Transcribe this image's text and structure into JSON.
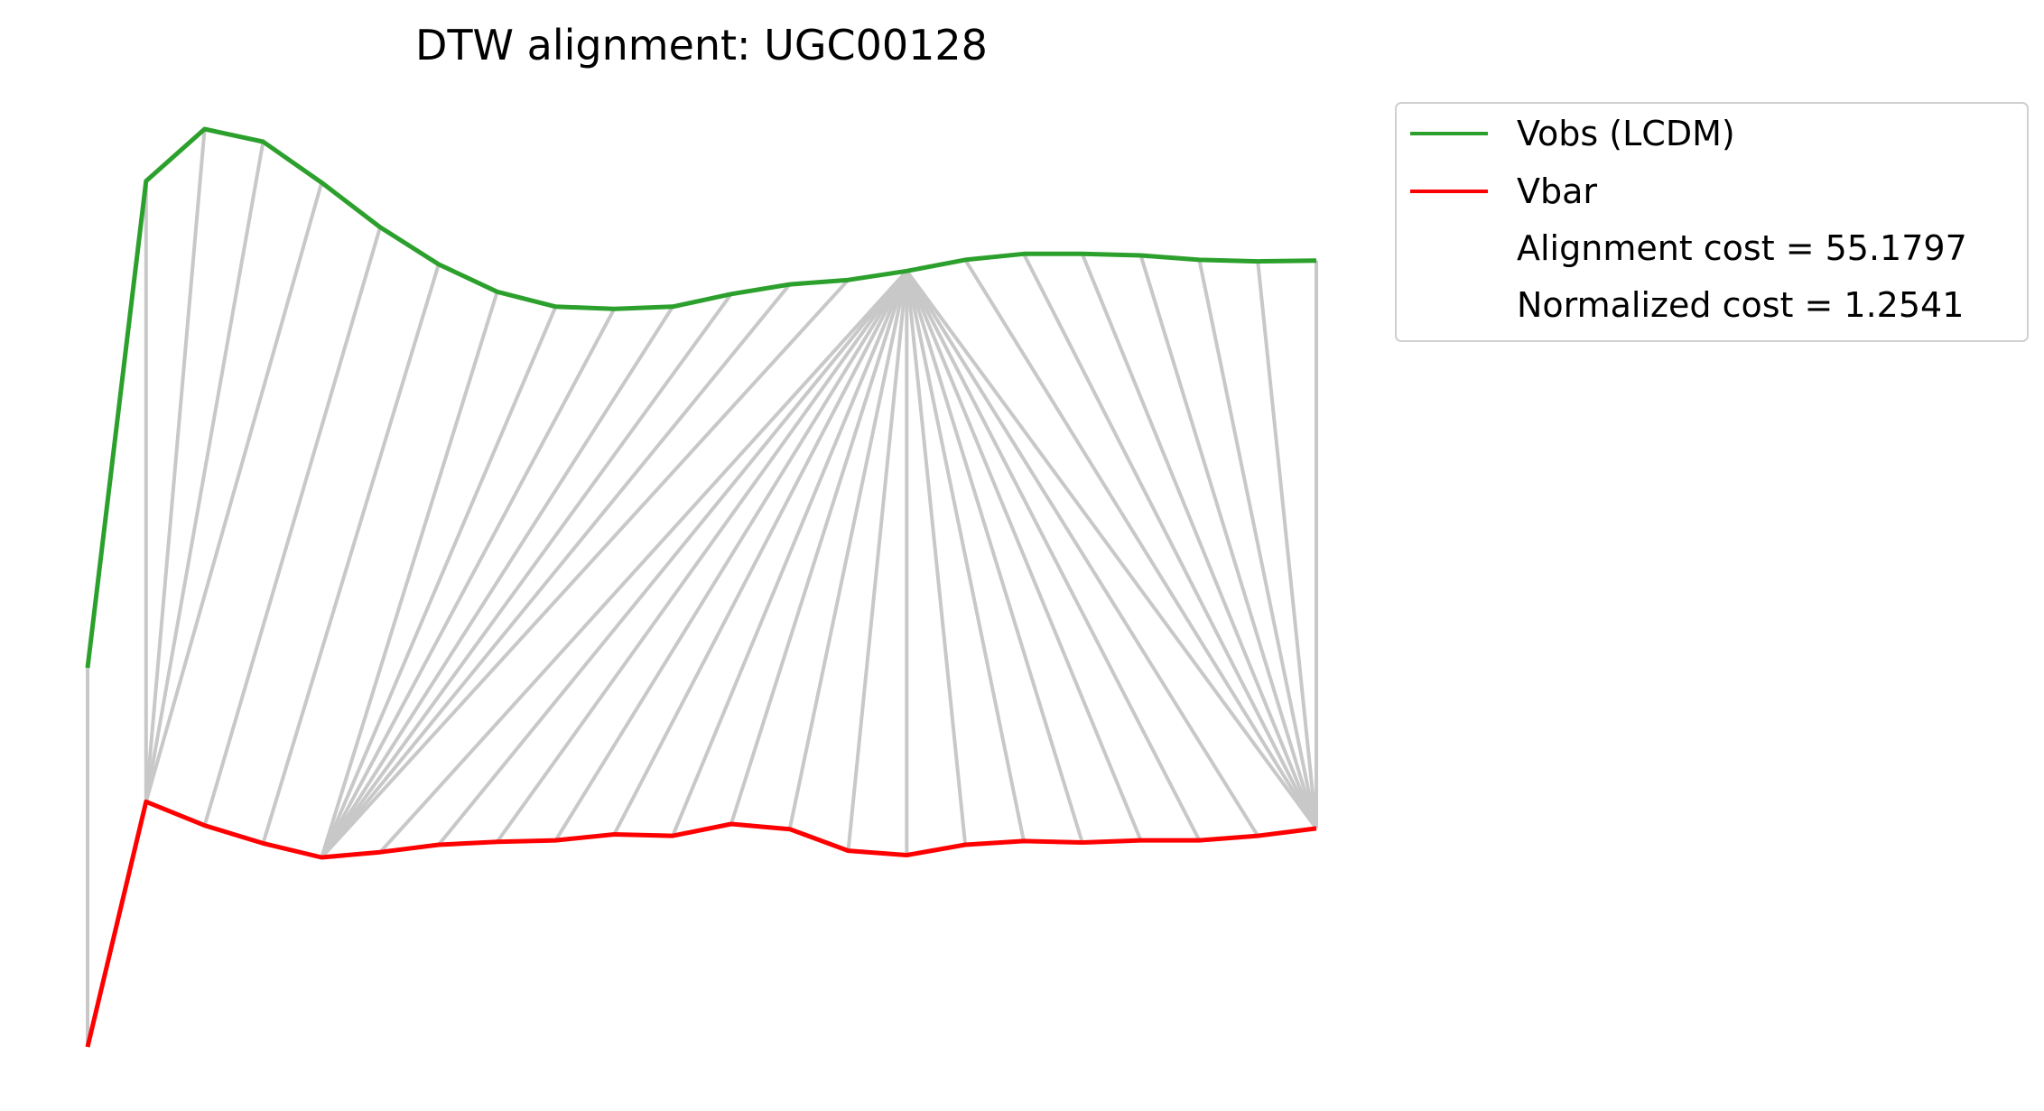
{
  "chart_data": {
    "type": "line",
    "title": "DTW alignment: UGC00128",
    "xlabel": "",
    "ylabel": "",
    "axes_visible": false,
    "grid": false,
    "legend_position": "outside upper right",
    "series": [
      {
        "name": "Vobs (LCDM)",
        "color": "#2ca02c",
        "values": [
          -2.0,
          4.55,
          5.25,
          5.08,
          4.53,
          3.93,
          3.43,
          3.06,
          2.86,
          2.83,
          2.86,
          3.03,
          3.16,
          3.22,
          3.34,
          3.49,
          3.57,
          3.57,
          3.55,
          3.49,
          3.47,
          3.48
        ]
      },
      {
        "name": "Vbar",
        "color": "#ff0000",
        "values": [
          -7.1,
          -3.8,
          -4.12,
          -4.36,
          -4.55,
          -4.48,
          -4.38,
          -4.34,
          -4.32,
          -4.24,
          -4.26,
          -4.1,
          -4.17,
          -4.46,
          -4.52,
          -4.38,
          -4.33,
          -4.35,
          -4.32,
          -4.32,
          -4.26,
          -4.16
        ]
      }
    ],
    "alignment_path": [
      [
        0,
        0
      ],
      [
        1,
        1
      ],
      [
        2,
        1
      ],
      [
        3,
        1
      ],
      [
        4,
        1
      ],
      [
        5,
        2
      ],
      [
        6,
        3
      ],
      [
        7,
        4
      ],
      [
        8,
        4
      ],
      [
        9,
        4
      ],
      [
        10,
        4
      ],
      [
        11,
        4
      ],
      [
        12,
        4
      ],
      [
        13,
        4
      ],
      [
        14,
        5
      ],
      [
        14,
        6
      ],
      [
        14,
        7
      ],
      [
        14,
        8
      ],
      [
        14,
        9
      ],
      [
        14,
        10
      ],
      [
        14,
        11
      ],
      [
        14,
        12
      ],
      [
        14,
        13
      ],
      [
        14,
        14
      ],
      [
        14,
        15
      ],
      [
        14,
        16
      ],
      [
        14,
        17
      ],
      [
        14,
        18
      ],
      [
        14,
        19
      ],
      [
        14,
        20
      ],
      [
        14,
        21
      ],
      [
        15,
        21
      ],
      [
        16,
        21
      ],
      [
        17,
        21
      ],
      [
        18,
        21
      ],
      [
        19,
        21
      ],
      [
        20,
        21
      ],
      [
        21,
        21
      ]
    ],
    "connector_color": "#c8c8c8",
    "annotations": [
      "Alignment cost = 55.1797",
      "Normalized cost = 1.2541"
    ]
  }
}
